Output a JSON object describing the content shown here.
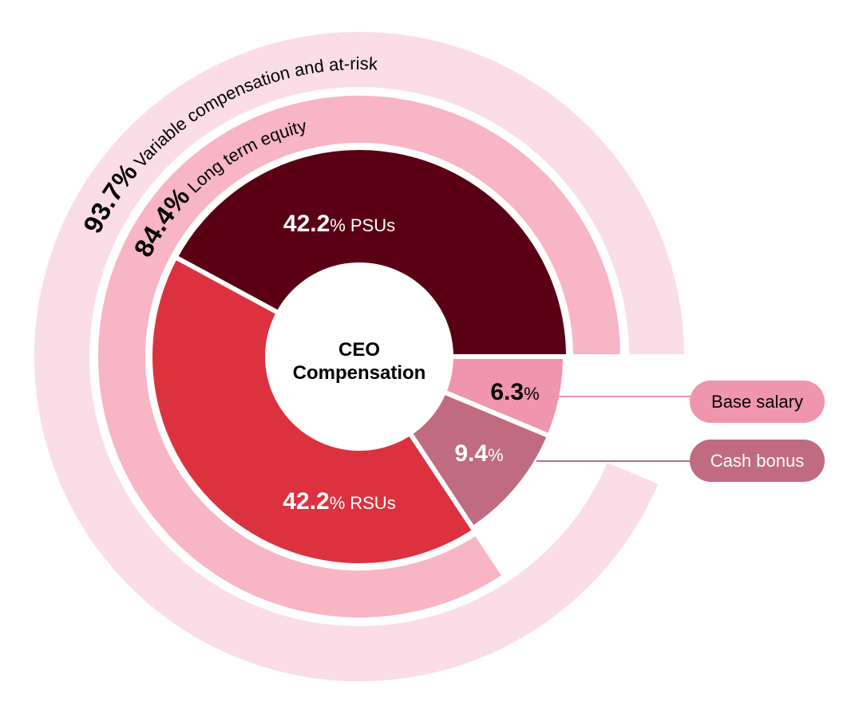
{
  "chart_data": {
    "type": "sunburst-donut",
    "center_label": [
      "CEO",
      "Compensation"
    ],
    "inner_ring": [
      {
        "label": "PSUs",
        "value": 42.2,
        "display": "42.2",
        "color": "#5a0015",
        "text_color": "#ffffff"
      },
      {
        "label": "Base salary",
        "value": 6.3,
        "display": "6.3",
        "color": "#ef95ad",
        "text_color": "#000000"
      },
      {
        "label": "Cash bonus",
        "value": 9.4,
        "display": "9.4",
        "color": "#c06b80",
        "text_color": "#ffffff"
      },
      {
        "label": "RSUs",
        "value": 42.2,
        "display": "42.2",
        "color": "#dc3240",
        "text_color": "#ffffff"
      }
    ],
    "middle_ring": {
      "label": "Long term equity",
      "value": 84.4,
      "display": "84.4%",
      "color": "#f7b5c6",
      "covers": [
        "PSUs",
        "RSUs"
      ]
    },
    "outer_ring": {
      "label": "Variable compensation and at-risk",
      "value": 93.7,
      "display": "93.7%",
      "color": "#fbdde7",
      "covers": [
        "PSUs",
        "RSUs",
        "Cash bonus"
      ]
    },
    "percent_sign": "%",
    "legend": [
      {
        "label": "Base salary",
        "color": "#ef95ad",
        "text_color": "#000000"
      },
      {
        "label": "Cash bonus",
        "color": "#c06b80",
        "text_color": "#ffffff"
      }
    ]
  }
}
